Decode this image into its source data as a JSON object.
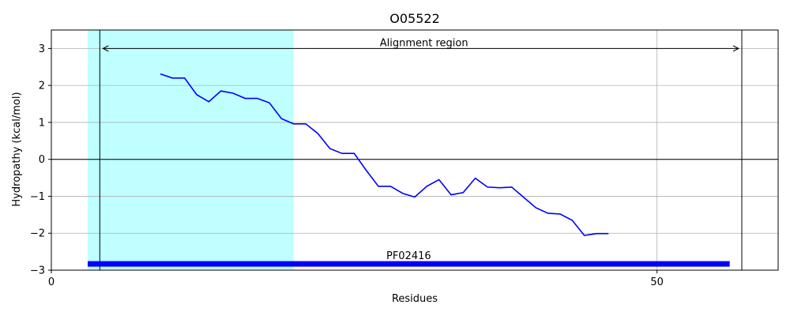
{
  "chart_data": {
    "type": "line",
    "title": "O05522",
    "xlabel": "Residues",
    "ylabel": "Hydropathy (kcal/mol)",
    "xlim": [
      0,
      60
    ],
    "ylim": [
      -3,
      3.5
    ],
    "xticks": [
      0,
      50
    ],
    "yticks": [
      -3,
      -2,
      -1,
      0,
      1,
      2,
      3
    ],
    "grid": true,
    "series": [
      {
        "color": "#0000ff",
        "x": [
          9,
          10,
          11,
          12,
          13,
          14,
          15,
          16,
          17,
          18,
          19,
          20,
          21,
          22,
          23,
          24,
          25,
          26,
          27,
          28,
          29,
          30,
          31,
          32,
          33,
          34,
          35,
          36,
          37,
          38,
          39,
          40,
          41,
          42,
          43,
          44,
          45,
          46
        ],
        "y": [
          2.31,
          2.2,
          2.2,
          1.75,
          1.56,
          1.85,
          1.79,
          1.65,
          1.65,
          1.53,
          1.1,
          0.96,
          0.96,
          0.7,
          0.29,
          0.16,
          0.16,
          -0.3,
          -0.73,
          -0.73,
          -0.92,
          -1.02,
          -0.73,
          -0.55,
          -0.96,
          -0.9,
          -0.51,
          -0.75,
          -0.77,
          -0.75,
          -1.03,
          -1.31,
          -1.46,
          -1.48,
          -1.65,
          -2.06,
          -2.01,
          -2.01
        ]
      }
    ],
    "shaded_region": {
      "x0": 3,
      "x1": 20,
      "color": "#bfffff"
    },
    "vlines": [
      4,
      57
    ],
    "hline": 0,
    "alignment_arrow": {
      "x0": 4,
      "x1": 57,
      "y": 3,
      "label": "Alignment region"
    },
    "domain_bar": {
      "x0": 3,
      "x1": 56,
      "y": -2.83,
      "color": "#0000ff",
      "label": "PF02416"
    }
  }
}
